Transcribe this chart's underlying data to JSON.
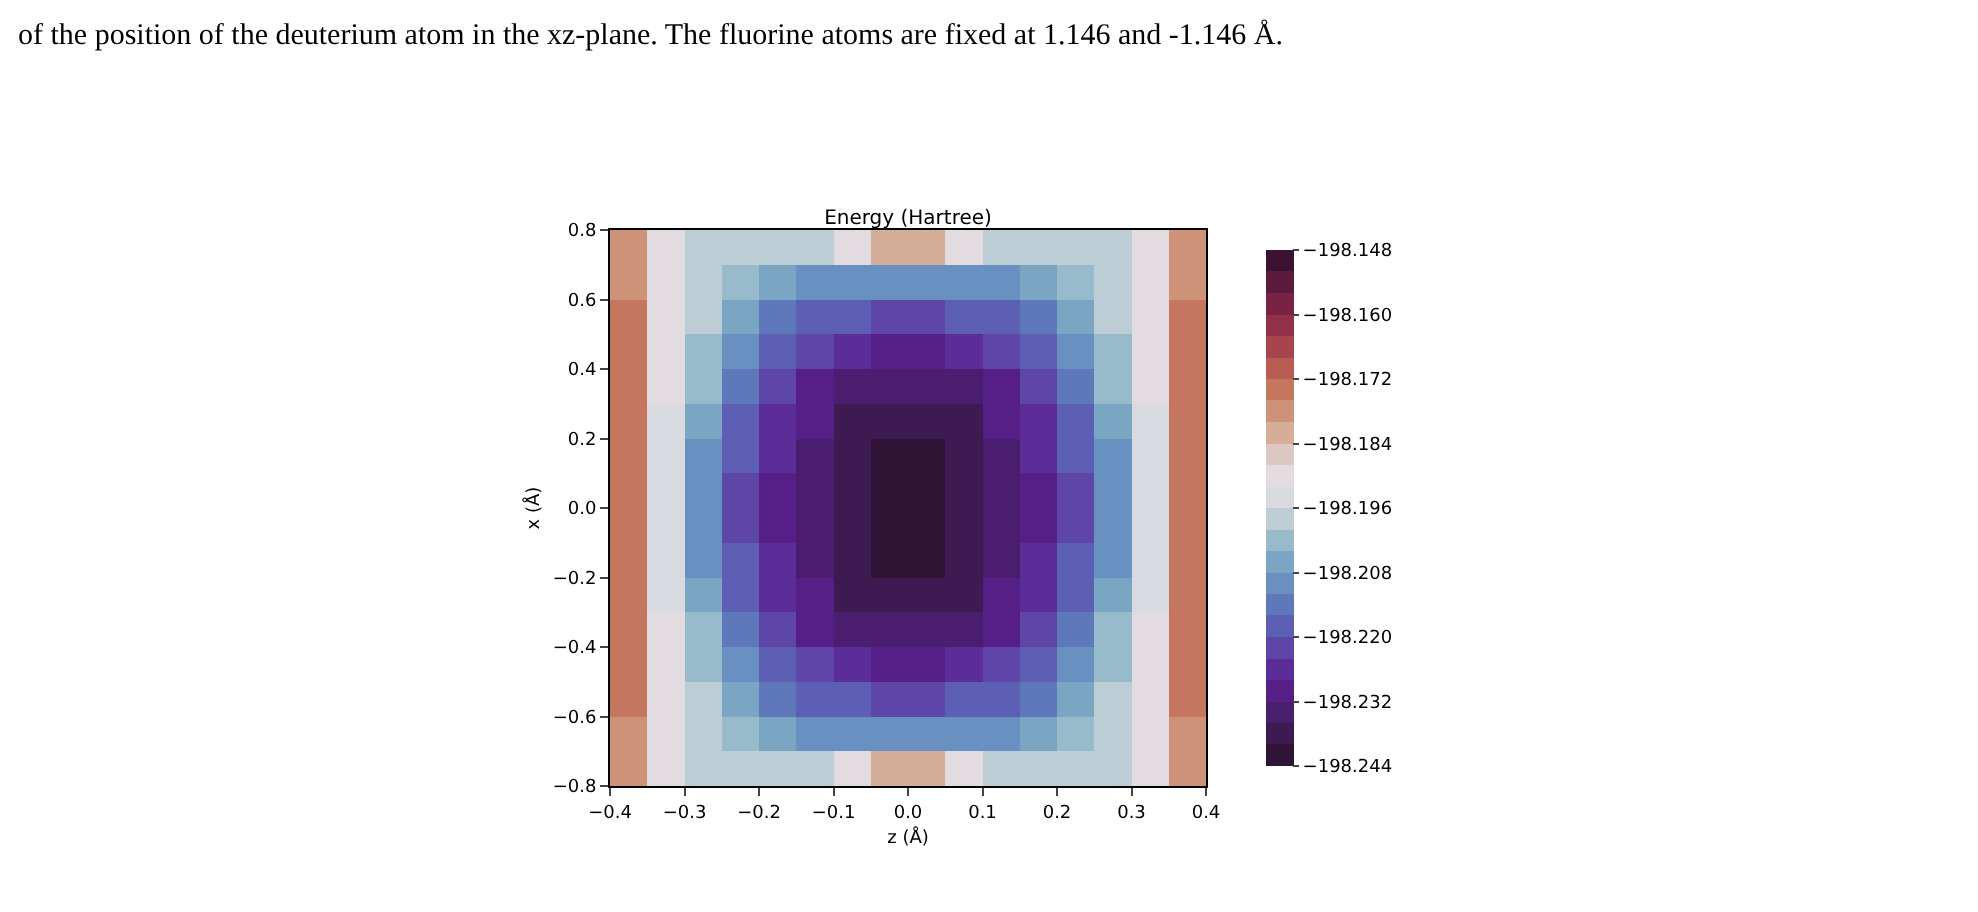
{
  "chart_data": {
    "type": "heatmap",
    "title": "Energy (Hartree)",
    "xlabel": "z (Å)",
    "ylabel": "x (Å)",
    "annotations": [
      "of the position of the deuterium atom in the xz-plane. The fluorine atoms are fixed at 1.146 and -1.146 Å."
    ],
    "x": [
      -0.375,
      -0.325,
      -0.275,
      -0.225,
      -0.175,
      -0.125,
      -0.075,
      -0.025,
      0.025,
      0.075,
      0.125,
      0.175,
      0.225,
      0.275,
      0.325,
      0.375
    ],
    "y": [
      0.75,
      0.65,
      0.55,
      0.45,
      0.35,
      0.25,
      0.15,
      0.05,
      -0.05,
      -0.15,
      -0.25,
      -0.35,
      -0.45,
      -0.55,
      -0.65,
      -0.75
    ],
    "cells": [
      [
        -198.18,
        -198.19,
        -198.197,
        -198.198,
        -198.199,
        -198.198,
        -198.19,
        -198.182,
        -198.182,
        -198.19,
        -198.198,
        -198.199,
        -198.198,
        -198.197,
        -198.19,
        -198.18
      ],
      [
        -198.178,
        -198.19,
        -198.198,
        -198.202,
        -198.206,
        -198.21,
        -198.21,
        -198.21,
        -198.21,
        -198.21,
        -198.21,
        -198.206,
        -198.202,
        -198.198,
        -198.19,
        -198.178
      ],
      [
        -198.176,
        -198.19,
        -198.198,
        -198.206,
        -198.214,
        -198.218,
        -198.218,
        -198.222,
        -198.222,
        -198.218,
        -198.218,
        -198.214,
        -198.206,
        -198.198,
        -198.19,
        -198.176
      ],
      [
        -198.174,
        -198.19,
        -198.202,
        -198.21,
        -198.218,
        -198.222,
        -198.226,
        -198.23,
        -198.23,
        -198.226,
        -198.222,
        -198.218,
        -198.21,
        -198.202,
        -198.19,
        -198.174
      ],
      [
        -198.174,
        -198.19,
        -198.202,
        -198.214,
        -198.222,
        -198.23,
        -198.234,
        -198.234,
        -198.234,
        -198.234,
        -198.23,
        -198.222,
        -198.214,
        -198.202,
        -198.19,
        -198.174
      ],
      [
        -198.174,
        -198.194,
        -198.206,
        -198.218,
        -198.226,
        -198.23,
        -198.238,
        -198.238,
        -198.238,
        -198.238,
        -198.23,
        -198.226,
        -198.218,
        -198.206,
        -198.194,
        -198.174
      ],
      [
        -198.174,
        -198.194,
        -198.21,
        -198.218,
        -198.226,
        -198.234,
        -198.238,
        -198.242,
        -198.242,
        -198.238,
        -198.234,
        -198.226,
        -198.218,
        -198.21,
        -198.194,
        -198.174
      ],
      [
        -198.174,
        -198.194,
        -198.21,
        -198.222,
        -198.23,
        -198.234,
        -198.238,
        -198.242,
        -198.242,
        -198.238,
        -198.234,
        -198.23,
        -198.222,
        -198.21,
        -198.194,
        -198.174
      ],
      [
        -198.174,
        -198.194,
        -198.21,
        -198.222,
        -198.23,
        -198.234,
        -198.238,
        -198.242,
        -198.242,
        -198.238,
        -198.234,
        -198.23,
        -198.222,
        -198.21,
        -198.194,
        -198.174
      ],
      [
        -198.174,
        -198.194,
        -198.21,
        -198.218,
        -198.226,
        -198.234,
        -198.238,
        -198.242,
        -198.242,
        -198.238,
        -198.234,
        -198.226,
        -198.218,
        -198.21,
        -198.194,
        -198.174
      ],
      [
        -198.174,
        -198.194,
        -198.206,
        -198.218,
        -198.226,
        -198.23,
        -198.238,
        -198.238,
        -198.238,
        -198.238,
        -198.23,
        -198.226,
        -198.218,
        -198.206,
        -198.194,
        -198.174
      ],
      [
        -198.174,
        -198.19,
        -198.202,
        -198.214,
        -198.222,
        -198.23,
        -198.234,
        -198.234,
        -198.234,
        -198.234,
        -198.23,
        -198.222,
        -198.214,
        -198.202,
        -198.19,
        -198.174
      ],
      [
        -198.174,
        -198.19,
        -198.202,
        -198.21,
        -198.218,
        -198.222,
        -198.226,
        -198.23,
        -198.23,
        -198.226,
        -198.222,
        -198.218,
        -198.21,
        -198.202,
        -198.19,
        -198.174
      ],
      [
        -198.176,
        -198.19,
        -198.198,
        -198.206,
        -198.214,
        -198.218,
        -198.218,
        -198.222,
        -198.222,
        -198.218,
        -198.218,
        -198.214,
        -198.206,
        -198.198,
        -198.19,
        -198.176
      ],
      [
        -198.178,
        -198.19,
        -198.198,
        -198.202,
        -198.206,
        -198.21,
        -198.21,
        -198.21,
        -198.21,
        -198.21,
        -198.21,
        -198.206,
        -198.202,
        -198.198,
        -198.19,
        -198.178
      ],
      [
        -198.18,
        -198.19,
        -198.197,
        -198.198,
        -198.199,
        -198.198,
        -198.19,
        -198.182,
        -198.182,
        -198.19,
        -198.198,
        -198.199,
        -198.198,
        -198.197,
        -198.19,
        -198.18
      ]
    ],
    "colors": [
      "#2f1436",
      "#3e1a52",
      "#4b1d6e",
      "#561f87",
      "#5c2d99",
      "#5e45a8",
      "#5c5fb4",
      "#5e78bb",
      "#6890c0",
      "#7aa6c4",
      "#98bbcb",
      "#bccdd6",
      "#d9dadf",
      "#e2dce0",
      "#dcc7c3",
      "#d5ae99",
      "#cd9277",
      "#c4775e",
      "#b95c51",
      "#a8444c",
      "#92304a",
      "#782244",
      "#5b1a3e",
      "#3c1233"
    ],
    "clim": [
      -198.244,
      -198.148
    ],
    "cticks": [
      {
        "value": -198.244,
        "label": "−198.244"
      },
      {
        "value": -198.232,
        "label": "−198.232"
      },
      {
        "value": -198.22,
        "label": "−198.220"
      },
      {
        "value": -198.208,
        "label": "−198.208"
      },
      {
        "value": -198.196,
        "label": "−198.196"
      },
      {
        "value": -198.184,
        "label": "−198.184"
      },
      {
        "value": -198.172,
        "label": "−198.172"
      },
      {
        "value": -198.16,
        "label": "−198.160"
      },
      {
        "value": -198.148,
        "label": "−198.148"
      }
    ],
    "xlim": [
      -0.4,
      0.4
    ],
    "xticks": [
      {
        "value": -0.4,
        "label": "−0.4"
      },
      {
        "value": -0.3,
        "label": "−0.3"
      },
      {
        "value": -0.2,
        "label": "−0.2"
      },
      {
        "value": -0.1,
        "label": "−0.1"
      },
      {
        "value": 0,
        "label": "0.0"
      },
      0.1,
      0.2,
      0.3,
      0.4
    ],
    "ylim": [
      -0.8,
      0.8
    ],
    "yticks": [
      {
        "value": -0.8,
        "label": "−0.8"
      },
      {
        "value": -0.6,
        "label": "−0.6"
      },
      {
        "value": -0.4,
        "label": "−0.4"
      },
      {
        "value": -0.2,
        "label": "−0.2"
      },
      {
        "value": 0,
        "label": "0.0"
      },
      0.2,
      0.4,
      0.6,
      0.8
    ]
  }
}
